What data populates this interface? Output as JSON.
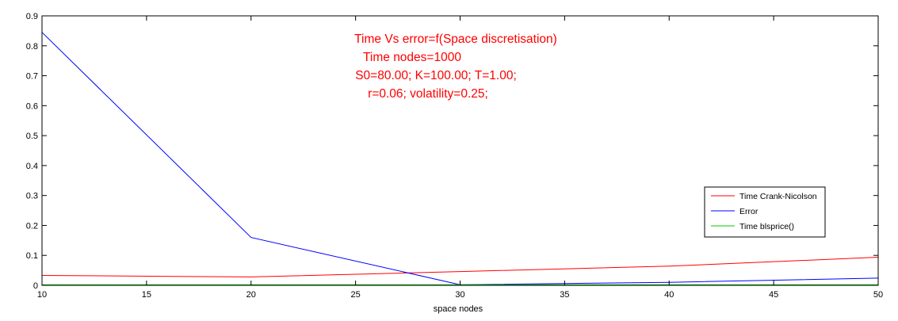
{
  "chart_data": {
    "type": "line",
    "title_lines": [
      "Time Vs error=f(Space discretisation)",
      "Time nodes=1000",
      "S0=80.00; K=100.00; T=1.00;",
      "r=0.06; volatility=0.25;"
    ],
    "xlabel": "space nodes",
    "ylabel": "",
    "xlim": [
      10,
      50
    ],
    "ylim": [
      0,
      0.9
    ],
    "x_ticks": [
      "10",
      "15",
      "20",
      "25",
      "30",
      "35",
      "40",
      "45",
      "50"
    ],
    "y_ticks": [
      "0",
      "0.1",
      "0.2",
      "0.3",
      "0.4",
      "0.5",
      "0.6",
      "0.7",
      "0.8",
      "0.9"
    ],
    "grid": false,
    "legend_position": "right",
    "series": [
      {
        "name": "Time Crank-Nicolson",
        "color": "#ff0000",
        "x": [
          10,
          20,
          30,
          40,
          50
        ],
        "y": [
          0.033,
          0.028,
          0.046,
          0.064,
          0.094
        ]
      },
      {
        "name": "Error",
        "color": "#0000ff",
        "x": [
          10,
          20,
          30,
          40,
          50
        ],
        "y": [
          0.845,
          0.16,
          0.002,
          0.01,
          0.024
        ]
      },
      {
        "name": "Time blsprice()",
        "color": "#00cc00",
        "x": [
          10,
          20,
          30,
          40,
          50
        ],
        "y": [
          0.002,
          0.002,
          0.002,
          0.002,
          0.002
        ]
      }
    ]
  }
}
